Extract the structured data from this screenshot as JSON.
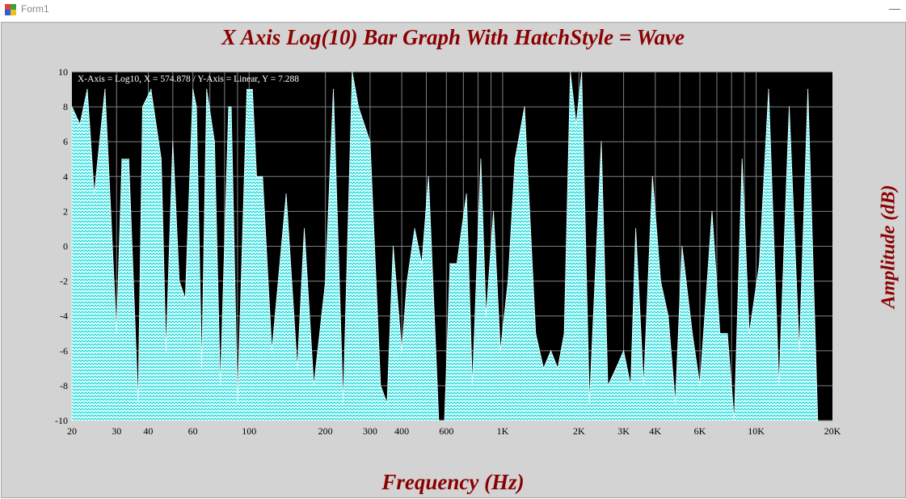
{
  "window": {
    "title": "Form1",
    "minimize_glyph": "—"
  },
  "colors": {
    "title": "#8b0000",
    "plot_bg": "#000000",
    "fill": "#e0ffff",
    "hatch": "#00ced1",
    "grid": "#808080",
    "form_bg": "#d3d3d3"
  },
  "readout": "X-Axis = Log10,  X = 574.878  /  Y-Axis = Linear,  Y = 7.288",
  "chart_data": {
    "type": "area",
    "title": "X Axis Log(10) Bar Graph With HatchStyle = Wave",
    "xlabel": "Frequency (Hz)",
    "ylabel": "Amplitude (dB)",
    "x_scale": "log10",
    "xlim": [
      20,
      20000
    ],
    "ylim": [
      -10,
      10
    ],
    "grid": true,
    "hatch_style": "Wave",
    "x_ticks": [
      {
        "v": 20,
        "label": "20"
      },
      {
        "v": 30,
        "label": "30"
      },
      {
        "v": 40,
        "label": "40"
      },
      {
        "v": 60,
        "label": "60"
      },
      {
        "v": 100,
        "label": "100"
      },
      {
        "v": 200,
        "label": "200"
      },
      {
        "v": 300,
        "label": "300"
      },
      {
        "v": 400,
        "label": "400"
      },
      {
        "v": 600,
        "label": "600"
      },
      {
        "v": 1000,
        "label": "1K"
      },
      {
        "v": 2000,
        "label": "2K"
      },
      {
        "v": 3000,
        "label": "3K"
      },
      {
        "v": 4000,
        "label": "4K"
      },
      {
        "v": 6000,
        "label": "6K"
      },
      {
        "v": 10000,
        "label": "10K"
      },
      {
        "v": 20000,
        "label": "20K"
      }
    ],
    "y_ticks": [
      -10,
      -8,
      -6,
      -4,
      -2,
      0,
      2,
      4,
      6,
      8,
      10
    ],
    "points": [
      [
        20,
        8
      ],
      [
        21.5,
        7
      ],
      [
        23,
        9
      ],
      [
        24.5,
        3
      ],
      [
        27,
        9
      ],
      [
        30,
        -5
      ],
      [
        31.5,
        5
      ],
      [
        33.5,
        5
      ],
      [
        36.5,
        -9
      ],
      [
        38,
        8
      ],
      [
        41,
        9
      ],
      [
        45,
        5
      ],
      [
        47,
        -6
      ],
      [
        50,
        6
      ],
      [
        53,
        -2
      ],
      [
        56,
        -3
      ],
      [
        60,
        9
      ],
      [
        62,
        8
      ],
      [
        65,
        -7
      ],
      [
        68,
        9
      ],
      [
        73,
        6
      ],
      [
        77,
        -8
      ],
      [
        83,
        8
      ],
      [
        85,
        8
      ],
      [
        90,
        -9
      ],
      [
        98,
        9
      ],
      [
        103,
        9
      ],
      [
        107,
        4
      ],
      [
        113,
        4
      ],
      [
        123,
        -6
      ],
      [
        140,
        3
      ],
      [
        155,
        -7
      ],
      [
        165,
        1
      ],
      [
        180,
        -8
      ],
      [
        200,
        -2
      ],
      [
        215,
        9
      ],
      [
        235,
        -9
      ],
      [
        255,
        10
      ],
      [
        270,
        8
      ],
      [
        300,
        6
      ],
      [
        330,
        -8
      ],
      [
        350,
        -9
      ],
      [
        370,
        0
      ],
      [
        400,
        -6
      ],
      [
        420,
        -2
      ],
      [
        450,
        1
      ],
      [
        480,
        -1
      ],
      [
        510,
        4
      ],
      [
        560,
        -10
      ],
      [
        590,
        -10
      ],
      [
        620,
        -1
      ],
      [
        660,
        -1
      ],
      [
        720,
        3
      ],
      [
        760,
        -8
      ],
      [
        820,
        5
      ],
      [
        860,
        -4
      ],
      [
        920,
        2
      ],
      [
        980,
        -6
      ],
      [
        1050,
        -2
      ],
      [
        1120,
        5
      ],
      [
        1220,
        8
      ],
      [
        1350,
        -5
      ],
      [
        1450,
        -7
      ],
      [
        1550,
        -6
      ],
      [
        1650,
        -7
      ],
      [
        1750,
        -5
      ],
      [
        1850,
        10
      ],
      [
        1950,
        7
      ],
      [
        2050,
        10
      ],
      [
        2200,
        -9
      ],
      [
        2450,
        6
      ],
      [
        2600,
        -8
      ],
      [
        2800,
        -7
      ],
      [
        3000,
        -6
      ],
      [
        3200,
        -8
      ],
      [
        3350,
        1
      ],
      [
        3600,
        -8
      ],
      [
        3900,
        4
      ],
      [
        4200,
        -2
      ],
      [
        4500,
        -4
      ],
      [
        4800,
        -9
      ],
      [
        5100,
        0
      ],
      [
        5600,
        -5
      ],
      [
        6000,
        -8
      ],
      [
        6700,
        2
      ],
      [
        7200,
        -5
      ],
      [
        7700,
        -5
      ],
      [
        8200,
        -10
      ],
      [
        8800,
        5
      ],
      [
        9400,
        -5
      ],
      [
        10300,
        -1
      ],
      [
        11200,
        9
      ],
      [
        12300,
        -8
      ],
      [
        13500,
        8
      ],
      [
        14800,
        -6
      ],
      [
        16000,
        9
      ],
      [
        17500,
        -10
      ]
    ]
  }
}
